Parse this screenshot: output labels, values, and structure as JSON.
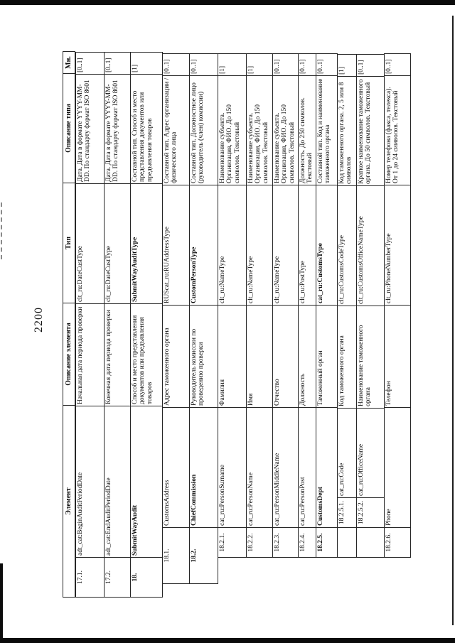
{
  "page": {
    "number": "2200"
  },
  "table": {
    "headers": {
      "element": "Элемент",
      "element_desc": "Описание элемента",
      "type": "Тип",
      "type_desc": "Описание типа",
      "mult": "Мн."
    },
    "rows": [
      {
        "num": "17.1.",
        "level": 1,
        "emphasis": false,
        "element": "adt_cat:BeginAuditPeriodDate",
        "element_desc": "Начальная дата периода проверки",
        "type": "clt_ru:DateCustType",
        "type_desc": "Дата. Дата в формате YYYY-MM-DD. По стандарту формат ISO 8601",
        "mult": "[0..1]"
      },
      {
        "num": "17.2.",
        "level": 1,
        "emphasis": false,
        "element": "adt_cat:EndAuditPeriodDate",
        "element_desc": "Конечная дата периода проверки",
        "type": "clt_ru:DateCustType",
        "type_desc": "Дата. Дата в формате YYYY-MM-DD. По стандарту формат ISO 8601",
        "mult": "[0..1]"
      },
      {
        "num": "18.",
        "level": 1,
        "emphasis": true,
        "element": "SubmitWayAudit",
        "element_desc": "Способ и место представления документов или предъявления товаров",
        "type": "SubmitWayAuditType",
        "type_desc": "Составной тип. Способ и место представления документов или предъявления товаров",
        "mult": "[1]"
      },
      {
        "num": "18.1.",
        "level": 2,
        "emphasis": false,
        "element": "CustomsAddress",
        "element_desc": "Адрес таможенного органа",
        "type": "RUScat_ru:RUAddressType",
        "type_desc": "Составной тип. Адрес организации / физического лица",
        "mult": "[0..1]"
      },
      {
        "num": "18.2.",
        "level": 2,
        "emphasis": true,
        "element": "ChiefCommission",
        "element_desc": "Руководитель комиссии по проведению проверки",
        "type": "CustomPersonType",
        "type_desc": "Составной тип. Должностное лицо (руководитель (член) комиссии)",
        "mult": "[0..1]"
      },
      {
        "num": "18.2.1.",
        "level": 3,
        "emphasis": false,
        "element": "cat_ru:PersonSurname",
        "element_desc": "Фамилия",
        "type": "clt_ru:NameType",
        "type_desc": "Наименование субъекта. Организация, ФИО. До 150 символов. Текстовый",
        "mult": "[1]"
      },
      {
        "num": "18.2.2.",
        "level": 3,
        "emphasis": false,
        "element": "cat_ru:PersonName",
        "element_desc": "Имя",
        "type": "clt_ru:NameType",
        "type_desc": "Наименование субъекта. Организация, ФИО. До 150 символов. Текстовый",
        "mult": "[1]"
      },
      {
        "num": "18.2.3.",
        "level": 3,
        "emphasis": false,
        "element": "cat_ru:PersonMiddleName",
        "element_desc": "Отчество",
        "type": "clt_ru:NameType",
        "type_desc": "Наименование субъекта. Организация, ФИО. До 150 символов. Текстовый",
        "mult": "[0..1]"
      },
      {
        "num": "18.2.4.",
        "level": 3,
        "emphasis": false,
        "element": "cat_ru:PersonPost",
        "element_desc": "Должность",
        "type": "clt_ru:PostType",
        "type_desc": "Должность. До 250 символов. Текстовый",
        "mult": "[0..1]"
      },
      {
        "num": "18.2.5.",
        "level": 3,
        "emphasis": true,
        "element": "CustomsDept",
        "element_desc": "Таможенный орган",
        "type": "cat_ru:CustomsType",
        "type_desc": "Составной тип. Код и наименование таможенного органа",
        "mult": "[0..1]"
      },
      {
        "num": "18.2.5.1.",
        "level": 4,
        "emphasis": false,
        "element": "cat_ru:Code",
        "element_desc": "Код таможенного органа",
        "type": "clt_ru:CustomsCodeType",
        "type_desc": "Код таможенного органа. 2, 5 или 8 символов",
        "mult": "[1]"
      },
      {
        "num": "18.2.5.2.",
        "level": 4,
        "emphasis": false,
        "element": "cat_ru:OfficeName",
        "element_desc": "Наименование таможенного органа",
        "type": "clt_ru:CustomsOfficeNameType",
        "type_desc": "Краткое наименование таможенного органа. До 50 символов. Текстовый",
        "mult": "[0..1]"
      },
      {
        "num": "18.2.6.",
        "level": 3,
        "emphasis": false,
        "element": "Phone",
        "element_desc": "Телефон",
        "type": "clt_ru:PhoneNumberType",
        "type_desc": "Номер телефона (факса, телекса). От 1 до 24 символов. Текстовый",
        "mult": "[0..1]"
      }
    ]
  }
}
